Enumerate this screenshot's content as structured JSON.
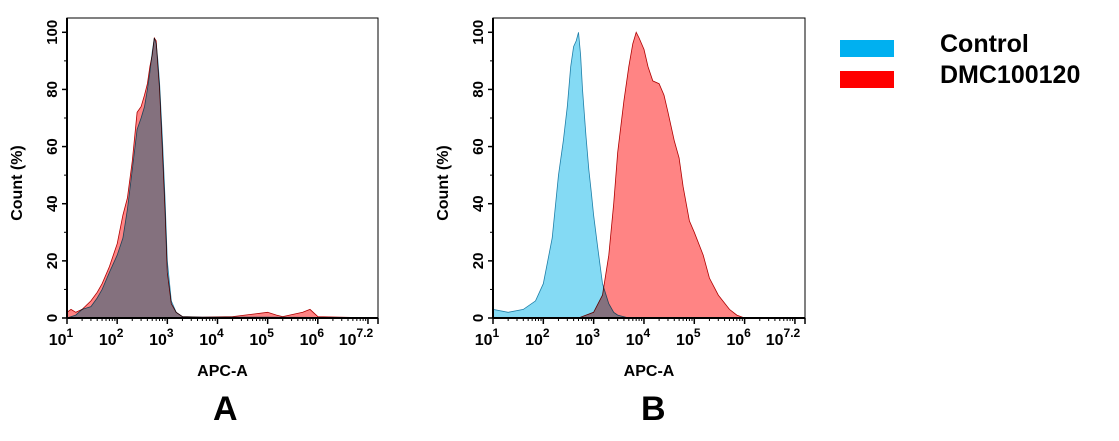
{
  "colors": {
    "control": "#00b0f0",
    "sample": "#ff0000",
    "control_fill": "#5bcdf0",
    "sample_fill": "#ff6f6f"
  },
  "legend": [
    {
      "label": "Control",
      "color": "#00b0f0"
    },
    {
      "label": "DMC100120",
      "color": "#ff0000"
    }
  ],
  "chart_data": [
    {
      "type": "area",
      "panel_label": "A",
      "xlabel": "APC-A",
      "ylabel": "Count  (%)",
      "x_scale": "log10",
      "xlim": [
        10,
        15848932
      ],
      "ylim": [
        0,
        105
      ],
      "y_ticks": [
        0,
        20,
        40,
        60,
        80,
        100
      ],
      "x_ticks": [
        "10^1",
        "10^2",
        "10^3",
        "10^4",
        "10^5",
        "10^6",
        "10^7.2"
      ],
      "series": [
        {
          "name": "Control",
          "x": [
            10,
            15,
            20,
            30,
            40,
            50,
            70,
            100,
            130,
            160,
            200,
            250,
            300,
            350,
            400,
            450,
            500,
            550,
            600,
            650,
            700,
            800,
            900,
            1000,
            1200,
            1500,
            2000,
            5000,
            100000,
            1000000,
            15848932
          ],
          "y": [
            0,
            1,
            3,
            4,
            7,
            10,
            16,
            22,
            28,
            38,
            52,
            66,
            70,
            74,
            80,
            86,
            93,
            98,
            96,
            90,
            82,
            62,
            42,
            20,
            6,
            2,
            0.5,
            0.3,
            0.3,
            0.2,
            0
          ]
        },
        {
          "name": "DMC100120",
          "x": [
            10,
            12,
            15,
            20,
            30,
            40,
            50,
            70,
            100,
            130,
            160,
            200,
            250,
            300,
            350,
            400,
            450,
            500,
            550,
            600,
            650,
            700,
            800,
            900,
            1000,
            1200,
            1500,
            2000,
            5000,
            20000,
            100000,
            150000,
            200000,
            500000,
            700000,
            1000000,
            15848932
          ],
          "y": [
            2,
            3,
            2,
            3,
            6,
            9,
            12,
            18,
            26,
            36,
            42,
            55,
            72,
            74,
            78,
            82,
            88,
            92,
            98,
            97,
            88,
            80,
            58,
            38,
            16,
            5,
            2,
            0.5,
            0.3,
            0.5,
            2,
            1,
            0.5,
            2,
            3,
            0.5,
            0
          ]
        }
      ]
    },
    {
      "type": "area",
      "panel_label": "B",
      "xlabel": "APC-A",
      "ylabel": "Count  (%)",
      "x_scale": "log10",
      "xlim": [
        10,
        15848932
      ],
      "ylim": [
        0,
        105
      ],
      "y_ticks": [
        0,
        20,
        40,
        60,
        80,
        100
      ],
      "x_ticks": [
        "10^1",
        "10^2",
        "10^3",
        "10^4",
        "10^5",
        "10^6",
        "10^7.2"
      ],
      "series": [
        {
          "name": "Control",
          "x": [
            10,
            20,
            40,
            70,
            100,
            150,
            200,
            250,
            300,
            350,
            400,
            450,
            500,
            550,
            600,
            700,
            800,
            900,
            1000,
            1200,
            1500,
            2000,
            2500,
            3000,
            5000,
            15848932
          ],
          "y": [
            3,
            2,
            3,
            6,
            12,
            28,
            50,
            62,
            74,
            88,
            95,
            97,
            100,
            92,
            80,
            64,
            52,
            44,
            36,
            25,
            12,
            5,
            2,
            1,
            0,
            0
          ]
        },
        {
          "name": "DMC100120",
          "x": [
            10,
            500,
            1000,
            1500,
            2000,
            2500,
            3000,
            4000,
            5000,
            6000,
            7000,
            8000,
            10000,
            12000,
            15000,
            20000,
            25000,
            30000,
            40000,
            50000,
            60000,
            80000,
            100000,
            150000,
            200000,
            300000,
            500000,
            700000,
            1000000,
            15848932
          ],
          "y": [
            0,
            0,
            2,
            8,
            22,
            40,
            58,
            76,
            88,
            96,
            100,
            98,
            94,
            88,
            83,
            82,
            78,
            72,
            62,
            56,
            46,
            34,
            30,
            22,
            14,
            8,
            3,
            1,
            0,
            0
          ]
        }
      ]
    }
  ]
}
